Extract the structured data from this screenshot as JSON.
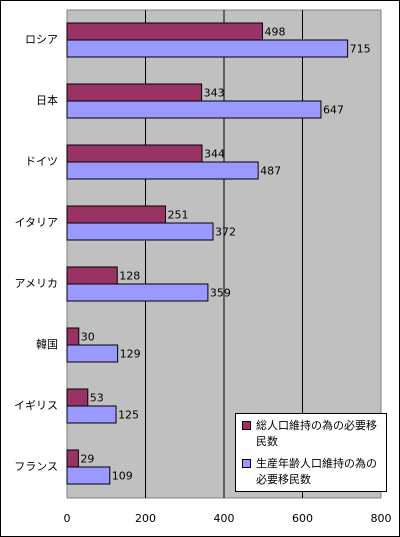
{
  "chart_data": {
    "type": "bar",
    "orientation": "horizontal",
    "categories": [
      "ロシア",
      "日本",
      "ドイツ",
      "イタリア",
      "アメリカ",
      "韓国",
      "イギリス",
      "フランス"
    ],
    "series": [
      {
        "name": "総人口維持の為の必要移民数",
        "values": [
          498,
          343,
          344,
          251,
          128,
          30,
          53,
          29
        ],
        "color": "#993366"
      },
      {
        "name": "生産年齢人口維持の為の必要移民数",
        "values": [
          715,
          647,
          487,
          372,
          359,
          129,
          125,
          109
        ],
        "color": "#9999ff"
      }
    ],
    "xticks": [
      "0",
      "200",
      "400",
      "600",
      "800"
    ],
    "xlim": [
      0,
      800
    ],
    "grid": "vertical",
    "plot_background": "#c0c0c0",
    "legend_position": "bottom-right"
  }
}
